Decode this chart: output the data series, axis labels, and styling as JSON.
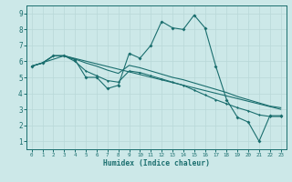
{
  "background_color": "#cce8e8",
  "grid_color": "#b8d8d8",
  "line_color": "#1a6e6e",
  "axis_color": "#1a6e6e",
  "xlabel": "Humidex (Indice chaleur)",
  "xlim": [
    -0.5,
    23.5
  ],
  "ylim": [
    0.5,
    9.5
  ],
  "xticks": [
    0,
    1,
    2,
    3,
    4,
    5,
    6,
    7,
    8,
    9,
    10,
    11,
    12,
    13,
    14,
    15,
    16,
    17,
    18,
    19,
    20,
    21,
    22,
    23
  ],
  "yticks": [
    1,
    2,
    3,
    4,
    5,
    6,
    7,
    8,
    9
  ],
  "line1_x": [
    0,
    1,
    2,
    3,
    4,
    5,
    6,
    7,
    8,
    9,
    10,
    11,
    12,
    13,
    14,
    15,
    16,
    17,
    18,
    19,
    20,
    21,
    22,
    23
  ],
  "line1_y": [
    5.7,
    5.9,
    6.35,
    6.35,
    6.1,
    5.0,
    5.0,
    4.3,
    4.5,
    6.5,
    6.2,
    7.0,
    8.5,
    8.1,
    8.0,
    8.9,
    8.1,
    5.7,
    3.6,
    2.5,
    2.2,
    1.0,
    2.6,
    2.6
  ],
  "line2_x": [
    0,
    1,
    2,
    3,
    4,
    5,
    6,
    7,
    8,
    9,
    10,
    11,
    12,
    13,
    14,
    15,
    16,
    17,
    18,
    19,
    20,
    21,
    22,
    23
  ],
  "line2_y": [
    5.7,
    5.9,
    6.35,
    6.35,
    6.0,
    5.4,
    5.1,
    4.8,
    4.7,
    5.4,
    5.3,
    5.1,
    4.9,
    4.7,
    4.5,
    4.2,
    3.9,
    3.6,
    3.35,
    3.1,
    2.9,
    2.65,
    2.55,
    2.55
  ],
  "line3_x": [
    0,
    1,
    2,
    3,
    4,
    5,
    6,
    7,
    8,
    9,
    10,
    11,
    12,
    13,
    14,
    15,
    16,
    17,
    18,
    19,
    20,
    21,
    22,
    23
  ],
  "line3_y": [
    5.7,
    5.9,
    6.35,
    6.35,
    6.15,
    5.9,
    5.7,
    5.45,
    5.25,
    5.75,
    5.6,
    5.4,
    5.2,
    5.0,
    4.85,
    4.65,
    4.45,
    4.25,
    4.05,
    3.8,
    3.6,
    3.4,
    3.2,
    3.1
  ],
  "line4_x": [
    0,
    3,
    23
  ],
  "line4_y": [
    5.7,
    6.35,
    3.0
  ]
}
